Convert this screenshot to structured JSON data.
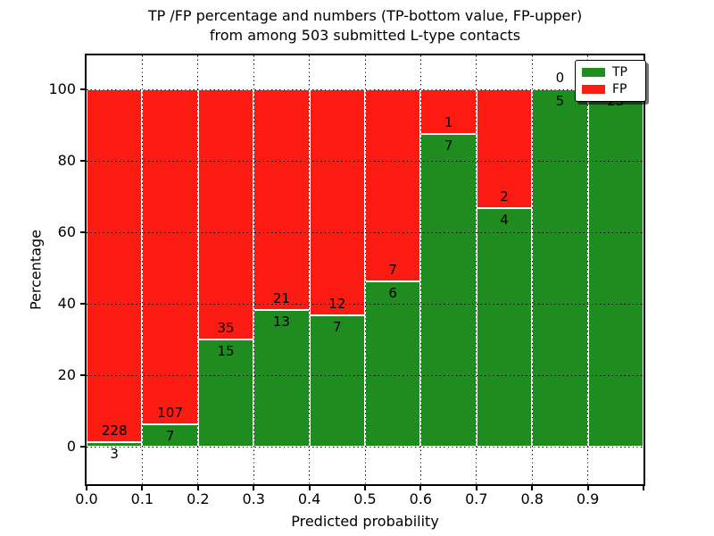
{
  "title_line1": "TP /FP percentage and numbers (TP-bottom value, FP-upper)",
  "title_line2": "from among 503 submitted L-type contacts",
  "legend": {
    "tp_label": "TP",
    "fp_label": "FP"
  },
  "colors": {
    "tp_green": "#1f8c1f",
    "fp_red": "#fb1b12"
  },
  "chart_data": {
    "type": "bar",
    "stacking": "percentage_stacked",
    "title": "TP /FP percentage and numbers (TP-bottom value, FP-upper) from among 503 submitted L-type contacts",
    "xlabel": "Predicted probability",
    "ylabel": "Percentage",
    "bin_edges": [
      0.0,
      0.1,
      0.2,
      0.3,
      0.4,
      0.5,
      0.6,
      0.7,
      0.8,
      0.9,
      1.0
    ],
    "xtick_labels": [
      "0.0",
      "0.1",
      "0.2",
      "0.3",
      "0.4",
      "0.5",
      "0.6",
      "0.7",
      "0.8",
      "0.9"
    ],
    "ytick_values": [
      0,
      20,
      40,
      60,
      80,
      100
    ],
    "ylim": [
      -10.5,
      109.5
    ],
    "grid": "dotted",
    "legend_position": "upper right",
    "total_contacts": 503,
    "series": [
      {
        "name": "TP",
        "color": "#1f8c1f",
        "counts": [
          3,
          7,
          15,
          13,
          7,
          6,
          7,
          4,
          5,
          23
        ]
      },
      {
        "name": "FP",
        "color": "#fb1b12",
        "counts": [
          228,
          107,
          35,
          21,
          12,
          7,
          1,
          2,
          0,
          0
        ]
      }
    ],
    "tp_percent_by_bin": [
      1.3,
      6.1,
      30.0,
      38.2,
      36.8,
      46.2,
      87.5,
      66.7,
      100.0,
      100.0
    ]
  }
}
